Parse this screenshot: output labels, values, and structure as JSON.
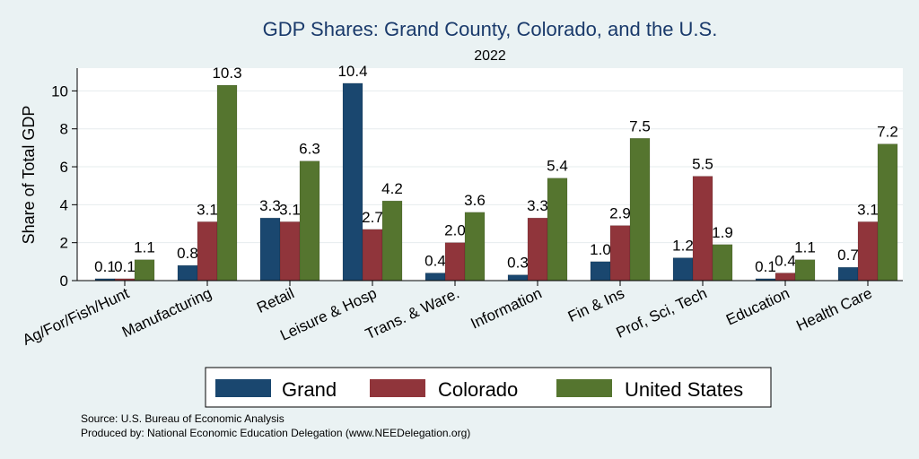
{
  "chart_data": {
    "type": "bar",
    "title": "GDP Shares: Grand County, Colorado, and the U.S.",
    "subtitle": "2022",
    "xlabel": "",
    "ylabel": "Share of Total GDP",
    "ylim": [
      0,
      11.2
    ],
    "yticks": [
      0,
      2,
      4,
      6,
      8,
      10
    ],
    "grid": true,
    "legend_position": "bottom",
    "categories": [
      "Ag/For/Fish/Hunt",
      "Manufacturing",
      "Retail",
      "Leisure & Hosp",
      "Trans. & Ware.",
      "Information",
      "Fin & Ins",
      "Prof, Sci, Tech",
      "Education",
      "Health Care"
    ],
    "series": [
      {
        "name": "Grand",
        "color": "#1a476f",
        "values": [
          0.1,
          0.8,
          3.3,
          10.4,
          0.4,
          0.3,
          1.0,
          1.2,
          0.1,
          0.7
        ],
        "labels": [
          "0.1",
          "0.8",
          "3.3",
          "10.4",
          "0.4",
          "0.3",
          "1.0",
          "1.2",
          "0.1",
          "0.7"
        ]
      },
      {
        "name": "Colorado",
        "color": "#90353b",
        "values": [
          0.1,
          3.1,
          3.1,
          2.7,
          2.0,
          3.3,
          2.9,
          5.5,
          0.4,
          3.1
        ],
        "labels": [
          "0.1",
          "3.1",
          "3.1",
          "2.7",
          "2.0",
          "3.3",
          "2.9",
          "5.5",
          "0.4",
          "3.1"
        ]
      },
      {
        "name": "United States",
        "color": "#55752f",
        "values": [
          1.1,
          10.3,
          6.3,
          4.2,
          3.6,
          5.4,
          7.5,
          1.9,
          1.1,
          7.2
        ],
        "labels": [
          "1.1",
          "10.3",
          "6.3",
          "4.2",
          "3.6",
          "5.4",
          "7.5",
          "1.9",
          "1.1",
          "7.2"
        ]
      }
    ]
  },
  "notes": {
    "source": "Source: U.S. Bureau of Economic Analysis",
    "produced_by": "Produced by: National Economic Education Delegation (www.NEEDelegation.org)"
  }
}
